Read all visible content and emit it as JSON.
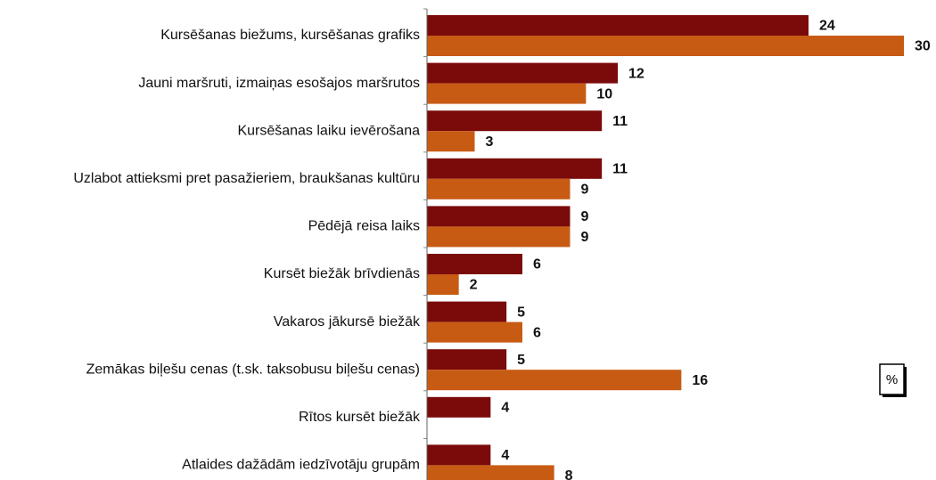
{
  "chart_data": {
    "type": "hbar",
    "categories": [
      "Kursēšanas biežums, kursēšanas grafiks",
      "Jauni maršruti, izmaiņas esošajos maršrutos",
      "Kursēšanas laiku ievērošana",
      "Uzlabot attieksmi pret pasažieriem, braukšanas kultūru",
      "Pēdējā reisa laiks",
      "Kursēt biežāk brīvdienās",
      "Vakaros jākursē biežāk",
      "Zemākas biļešu cenas (t.sk. taksobusu biļešu cenas)",
      "Rītos kursēt biežāk",
      "Atlaides dažādām iedzīvotāju grupām"
    ],
    "series": [
      {
        "color": "#7b0a0a",
        "values": [
          24,
          12,
          11,
          11,
          9,
          6,
          5,
          5,
          4,
          4
        ]
      },
      {
        "color": "#c75b14",
        "values": [
          30,
          10,
          3,
          9,
          9,
          2,
          6,
          16,
          null,
          8
        ]
      }
    ],
    "xlim": [
      0,
      30
    ],
    "unit_label": "%"
  }
}
